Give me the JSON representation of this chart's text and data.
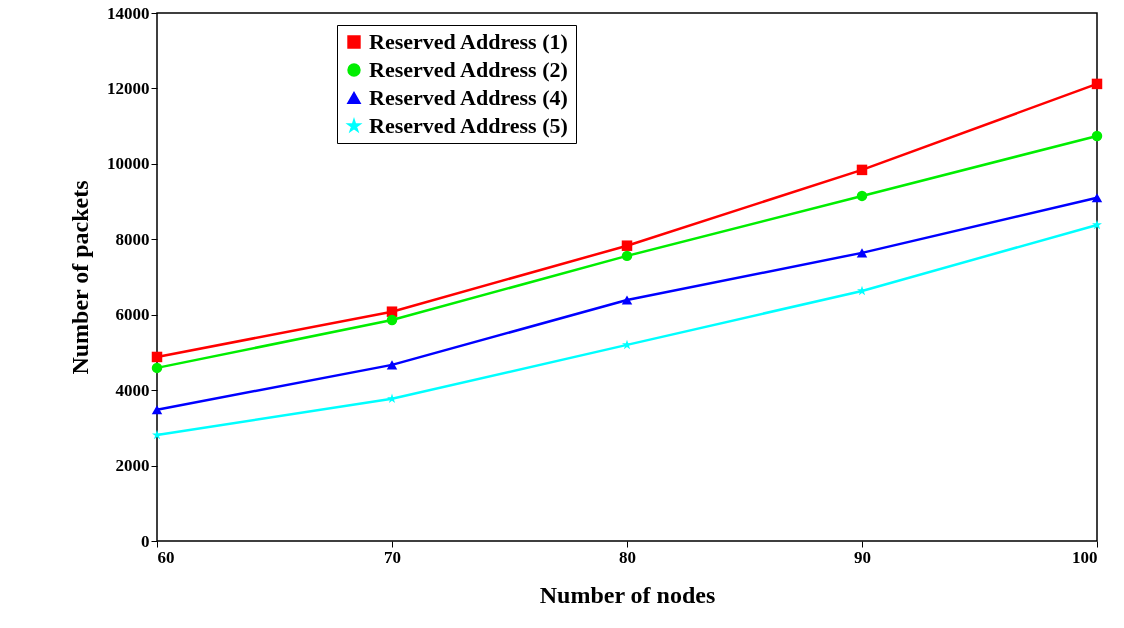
{
  "chart_data": {
    "type": "line",
    "xlabel": "Number of nodes",
    "ylabel": "Number of packets",
    "x": [
      60,
      70,
      80,
      90,
      100
    ],
    "series": [
      {
        "name": "Reserved Address (1)",
        "color": "#ff0000",
        "marker": "square",
        "values": [
          4880,
          6080,
          7830,
          9840,
          12120
        ]
      },
      {
        "name": "Reserved Address (2)",
        "color": "#00ee00",
        "marker": "circle",
        "values": [
          4590,
          5860,
          7560,
          9150,
          10740
        ]
      },
      {
        "name": "Reserved Address (4)",
        "color": "#0000ff",
        "marker": "triangle",
        "values": [
          3480,
          4670,
          6390,
          7640,
          9100
        ]
      },
      {
        "name": "Reserved Address (5)",
        "color": "#00ffff",
        "marker": "star",
        "values": [
          2810,
          3770,
          5200,
          6630,
          8380
        ]
      }
    ],
    "xlim": [
      60,
      100
    ],
    "xticks": [
      60,
      70,
      80,
      90,
      100
    ],
    "ylim": [
      0,
      14000
    ],
    "yticks": [
      0,
      2000,
      4000,
      6000,
      8000,
      10000,
      12000,
      14000
    ],
    "legend": "top",
    "line_style": "solid"
  }
}
